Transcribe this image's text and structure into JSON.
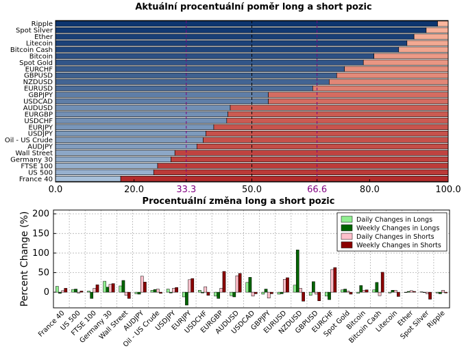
{
  "chart_data": [
    {
      "type": "bar",
      "orientation": "horizontal-stacked",
      "title": "Aktuální procentuální poměr long a short pozic",
      "categories": [
        "Ripple",
        "Spot Silver",
        "Ether",
        "Litecoin",
        "Bitcoin Cash",
        "Bitcoin",
        "Spot Gold",
        "EURCHF",
        "GBPUSD",
        "NZDUSD",
        "EURUSD",
        "GBPJPY",
        "USDCAD",
        "AUDUSD",
        "EURGBP",
        "USDCHF",
        "EURJPY",
        "USDJPY",
        "Oil - US Crude",
        "AUDJPY",
        "Wall Street",
        "Germany 30",
        "FTSE 100",
        "US 500",
        "France 40"
      ],
      "series": [
        {
          "values": [
            97.3,
            94.4,
            91.3,
            89.5,
            87.4,
            81.1,
            78.4,
            73.6,
            71.6,
            69.7,
            65.5,
            54.2,
            54.2,
            44.5,
            43.9,
            43.6,
            40.3,
            38.3,
            37.6,
            36.0,
            30.4,
            29.4,
            26.0,
            25.0,
            16.6
          ]
        },
        {
          "values": [
            2.7,
            5.6,
            8.7,
            10.5,
            12.6,
            18.9,
            21.6,
            26.4,
            28.4,
            30.3,
            34.5,
            45.8,
            45.8,
            55.5,
            56.1,
            56.4,
            59.7,
            61.7,
            62.4,
            64.0,
            69.6,
            70.6,
            74.0,
            75.0,
            83.4
          ]
        }
      ],
      "xlim": [
        0,
        100
      ],
      "xticks": [
        "0.0",
        "20.0",
        "33.3",
        "50.0",
        "66.6",
        "80.0",
        "100.0"
      ],
      "reference_lines": [
        33.3,
        50.0,
        66.6
      ],
      "colors": {
        "long_dark": "#08306b",
        "long_light": "#c6dbef",
        "short_light": "#fcbba1",
        "short_dark": "#a50f15",
        "ref_line": "#800080"
      }
    },
    {
      "type": "bar",
      "title": "Procentuální změna long a short pozic",
      "ylabel": "Percent Change (%)",
      "ylim": [
        -40,
        210
      ],
      "yticks": [
        "200",
        "150",
        "100",
        "50",
        "0"
      ],
      "grid": true,
      "legend_position": "top-right",
      "categories": [
        "France 40",
        "US 500",
        "FTSE 100",
        "Germany 30",
        "Wall Street",
        "AUDJPY",
        "Oil - US Crude",
        "USDJPY",
        "EURJPY",
        "USDCHF",
        "EURGBP",
        "AUDUSD",
        "USDCAD",
        "GBPJPY",
        "EURUSD",
        "NZDUSD",
        "GBPUSD",
        "EURCHF",
        "Spot Gold",
        "Bitcoin",
        "Bitcoin Cash",
        "Litecoin",
        "Ether",
        "Spot Silver",
        "Ripple"
      ],
      "series": [
        {
          "name": "Daily Changes in Longs",
          "color": "#90ee90",
          "values": [
            15,
            7,
            3,
            28,
            16,
            -4,
            5,
            8,
            -12,
            5,
            -10,
            -9,
            25,
            -5,
            -5,
            18,
            -8,
            -10,
            6,
            -3,
            6,
            -2,
            -1,
            1,
            -2
          ]
        },
        {
          "name": "Weekly Changes in Longs",
          "color": "#006400",
          "values": [
            -3,
            8,
            -16,
            13,
            30,
            -5,
            7,
            -2,
            -33,
            -2,
            -16,
            -12,
            38,
            8,
            -4,
            108,
            27,
            -19,
            8,
            17,
            25,
            5,
            2,
            -1,
            -4
          ]
        },
        {
          "name": "Daily Changes in Shorts",
          "color": "#ffc0cb",
          "values": [
            4,
            -2,
            10,
            20,
            -8,
            41,
            8,
            10,
            32,
            14,
            10,
            42,
            -10,
            -15,
            33,
            10,
            -5,
            58,
            3,
            5,
            -9,
            5,
            4,
            -4,
            5
          ]
        },
        {
          "name": "Weekly Changes in Shorts",
          "color": "#8b0000",
          "values": [
            10,
            3,
            19,
            22,
            -16,
            26,
            -3,
            12,
            35,
            -8,
            53,
            48,
            -4,
            -4,
            37,
            -23,
            -22,
            63,
            -5,
            6,
            51,
            -11,
            2,
            -18,
            -2
          ]
        }
      ]
    }
  ]
}
